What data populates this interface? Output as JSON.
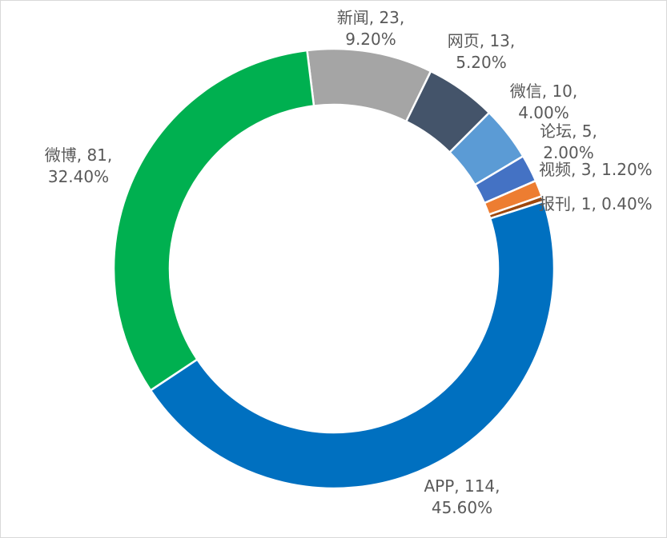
{
  "chart_data": {
    "type": "pie",
    "variant": "donut",
    "title": "",
    "legend": "none",
    "slices": [
      {
        "name": "新闻",
        "value": 23,
        "percent": "9.20%",
        "color": "#a5a5a5",
        "label_lines": [
          "新闻, 23,",
          "9.20%"
        ]
      },
      {
        "name": "网页",
        "value": 13,
        "percent": "5.20%",
        "color": "#44546a",
        "label_lines": [
          "网页, 13,",
          "5.20%"
        ]
      },
      {
        "name": "微信",
        "value": 10,
        "percent": "4.00%",
        "color": "#5b9bd5",
        "label_lines": [
          "微信, 10,",
          "4.00%"
        ]
      },
      {
        "name": "论坛",
        "value": 5,
        "percent": "2.00%",
        "color": "#4472c4",
        "label_lines": [
          "论坛, 5,",
          "2.00%"
        ]
      },
      {
        "name": "视频",
        "value": 3,
        "percent": "1.20%",
        "color": "#ed7d31",
        "label_lines": [
          "视频, 3, 1.20%"
        ]
      },
      {
        "name": "报刊",
        "value": 1,
        "percent": "0.40%",
        "color": "#9e480e",
        "label_lines": [
          "报刊, 1, 0.40%"
        ]
      },
      {
        "name": "APP",
        "value": 114,
        "percent": "45.60%",
        "color": "#0070c0",
        "label_lines": [
          "APP, 114,",
          "45.60%"
        ]
      },
      {
        "name": "微博",
        "value": 81,
        "percent": "32.40%",
        "color": "#00b050",
        "label_lines": [
          "微博, 81,",
          "32.40%"
        ]
      }
    ]
  }
}
